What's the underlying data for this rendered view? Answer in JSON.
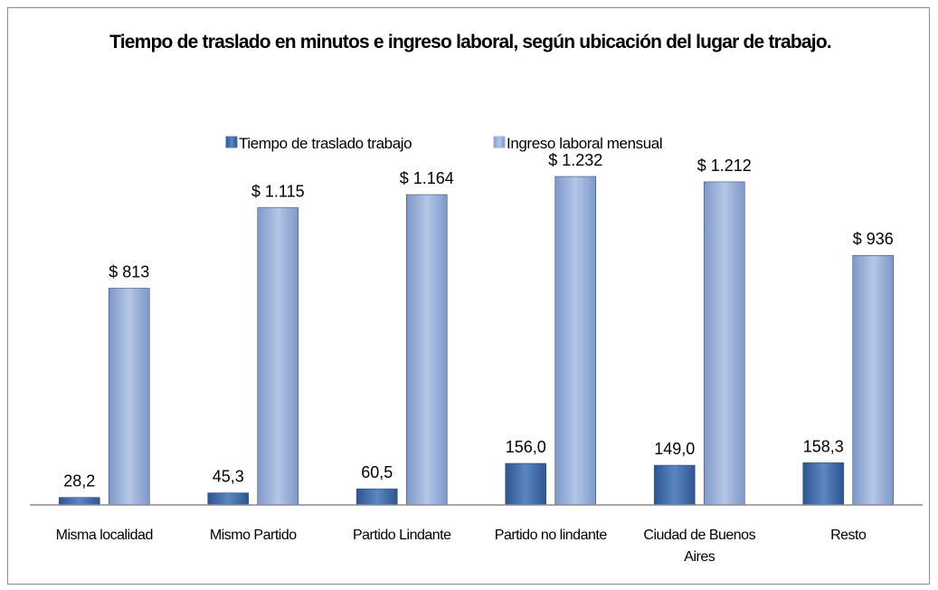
{
  "chart_data": {
    "type": "bar",
    "title": "Tiempo de traslado en minutos e ingreso laboral, según ubicación del lugar de trabajo.",
    "categories": [
      "Misma localidad",
      "Mismo Partido",
      "Partido Lindante",
      "Partido no lindante",
      "Ciudad de Buenos Aires",
      "Resto"
    ],
    "series": [
      {
        "name": "Tiempo de traslado  trabajo",
        "color": "#4a74b0",
        "values": [
          28.2,
          45.3,
          60.5,
          156.0,
          149.0,
          158.3
        ],
        "value_labels": [
          "28,2",
          "45,3",
          "60,5",
          "156,0",
          "149,0",
          "158,3"
        ]
      },
      {
        "name": "Ingreso laboral mensual",
        "color": "#9db3dc",
        "values": [
          813,
          1115,
          1164,
          1232,
          1212,
          936
        ],
        "value_labels": [
          "$ 813",
          "$ 1.115",
          "$ 1.164",
          "$ 1.232",
          "$ 1.212",
          "$ 936"
        ]
      }
    ],
    "ylim": [
      0,
      1300
    ],
    "legend": "top"
  }
}
